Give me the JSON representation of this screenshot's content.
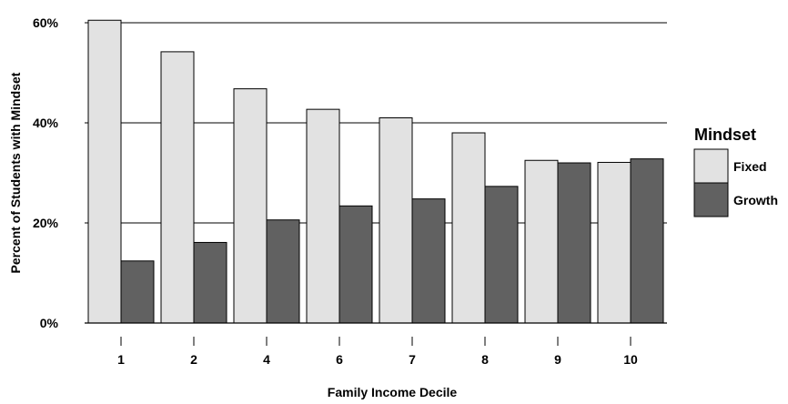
{
  "chart_data": {
    "type": "bar",
    "xlabel": "Family Income Decile",
    "ylabel": "Percent of Students with Mindset",
    "categories": [
      "1",
      "2",
      "4",
      "6",
      "7",
      "8",
      "9",
      "10"
    ],
    "series": [
      {
        "name": "Fixed",
        "color": "#e2e2e2",
        "values": [
          60.5,
          54.2,
          46.8,
          42.7,
          41.0,
          38.0,
          32.5,
          32.1
        ]
      },
      {
        "name": "Growth",
        "color": "#616161",
        "values": [
          12.4,
          16.1,
          20.6,
          23.4,
          24.8,
          27.3,
          32.0,
          32.8
        ]
      }
    ],
    "ylim": [
      0,
      60
    ],
    "y_ticks": [
      "0%",
      "20%",
      "40%",
      "60%"
    ],
    "y_tick_values": [
      0,
      20,
      40,
      60
    ],
    "grid": true,
    "legend": {
      "title": "Mindset",
      "position": "right"
    }
  }
}
